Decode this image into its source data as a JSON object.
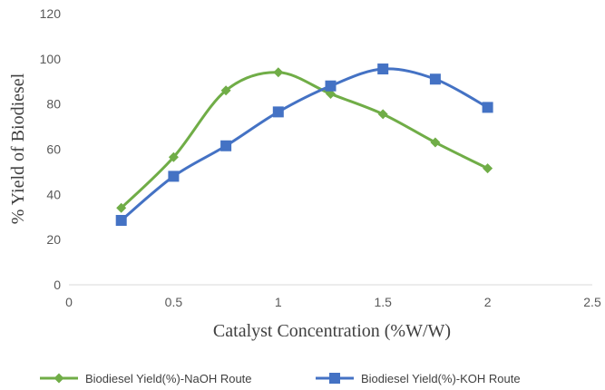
{
  "chart_data": {
    "type": "line",
    "title": "",
    "xlabel": "Catalyst Concentration (%W/W)",
    "ylabel": "% Yield of Biodiesel",
    "xlim": [
      0,
      2.5
    ],
    "ylim": [
      0,
      120
    ],
    "x_ticks": [
      0,
      0.5,
      1,
      1.5,
      2,
      2.5
    ],
    "x_tick_labels": [
      "0",
      "0.5",
      "1",
      "1.5",
      "2",
      "2.5"
    ],
    "y_ticks": [
      0,
      20,
      40,
      60,
      80,
      100,
      120
    ],
    "y_tick_labels": [
      "0",
      "20",
      "40",
      "60",
      "80",
      "100",
      "120"
    ],
    "grid": false,
    "smooth": true,
    "legend_position": "bottom",
    "series": [
      {
        "name": "Biodiesel Yield(%)-NaOH Route",
        "color": "#70ad47",
        "marker": "diamond",
        "x": [
          0.25,
          0.5,
          0.75,
          1,
          1.25,
          1.5,
          1.75,
          2
        ],
        "y": [
          34,
          56.5,
          86,
          94,
          84.5,
          75.5,
          63,
          51.5
        ]
      },
      {
        "name": "Biodiesel Yield(%)-KOH Route",
        "color": "#4472c4",
        "marker": "square",
        "x": [
          0.25,
          0.5,
          0.75,
          1,
          1.25,
          1.5,
          1.75,
          2
        ],
        "y": [
          28.5,
          48,
          61.5,
          76.5,
          88,
          95.5,
          91,
          78.5
        ]
      }
    ]
  }
}
